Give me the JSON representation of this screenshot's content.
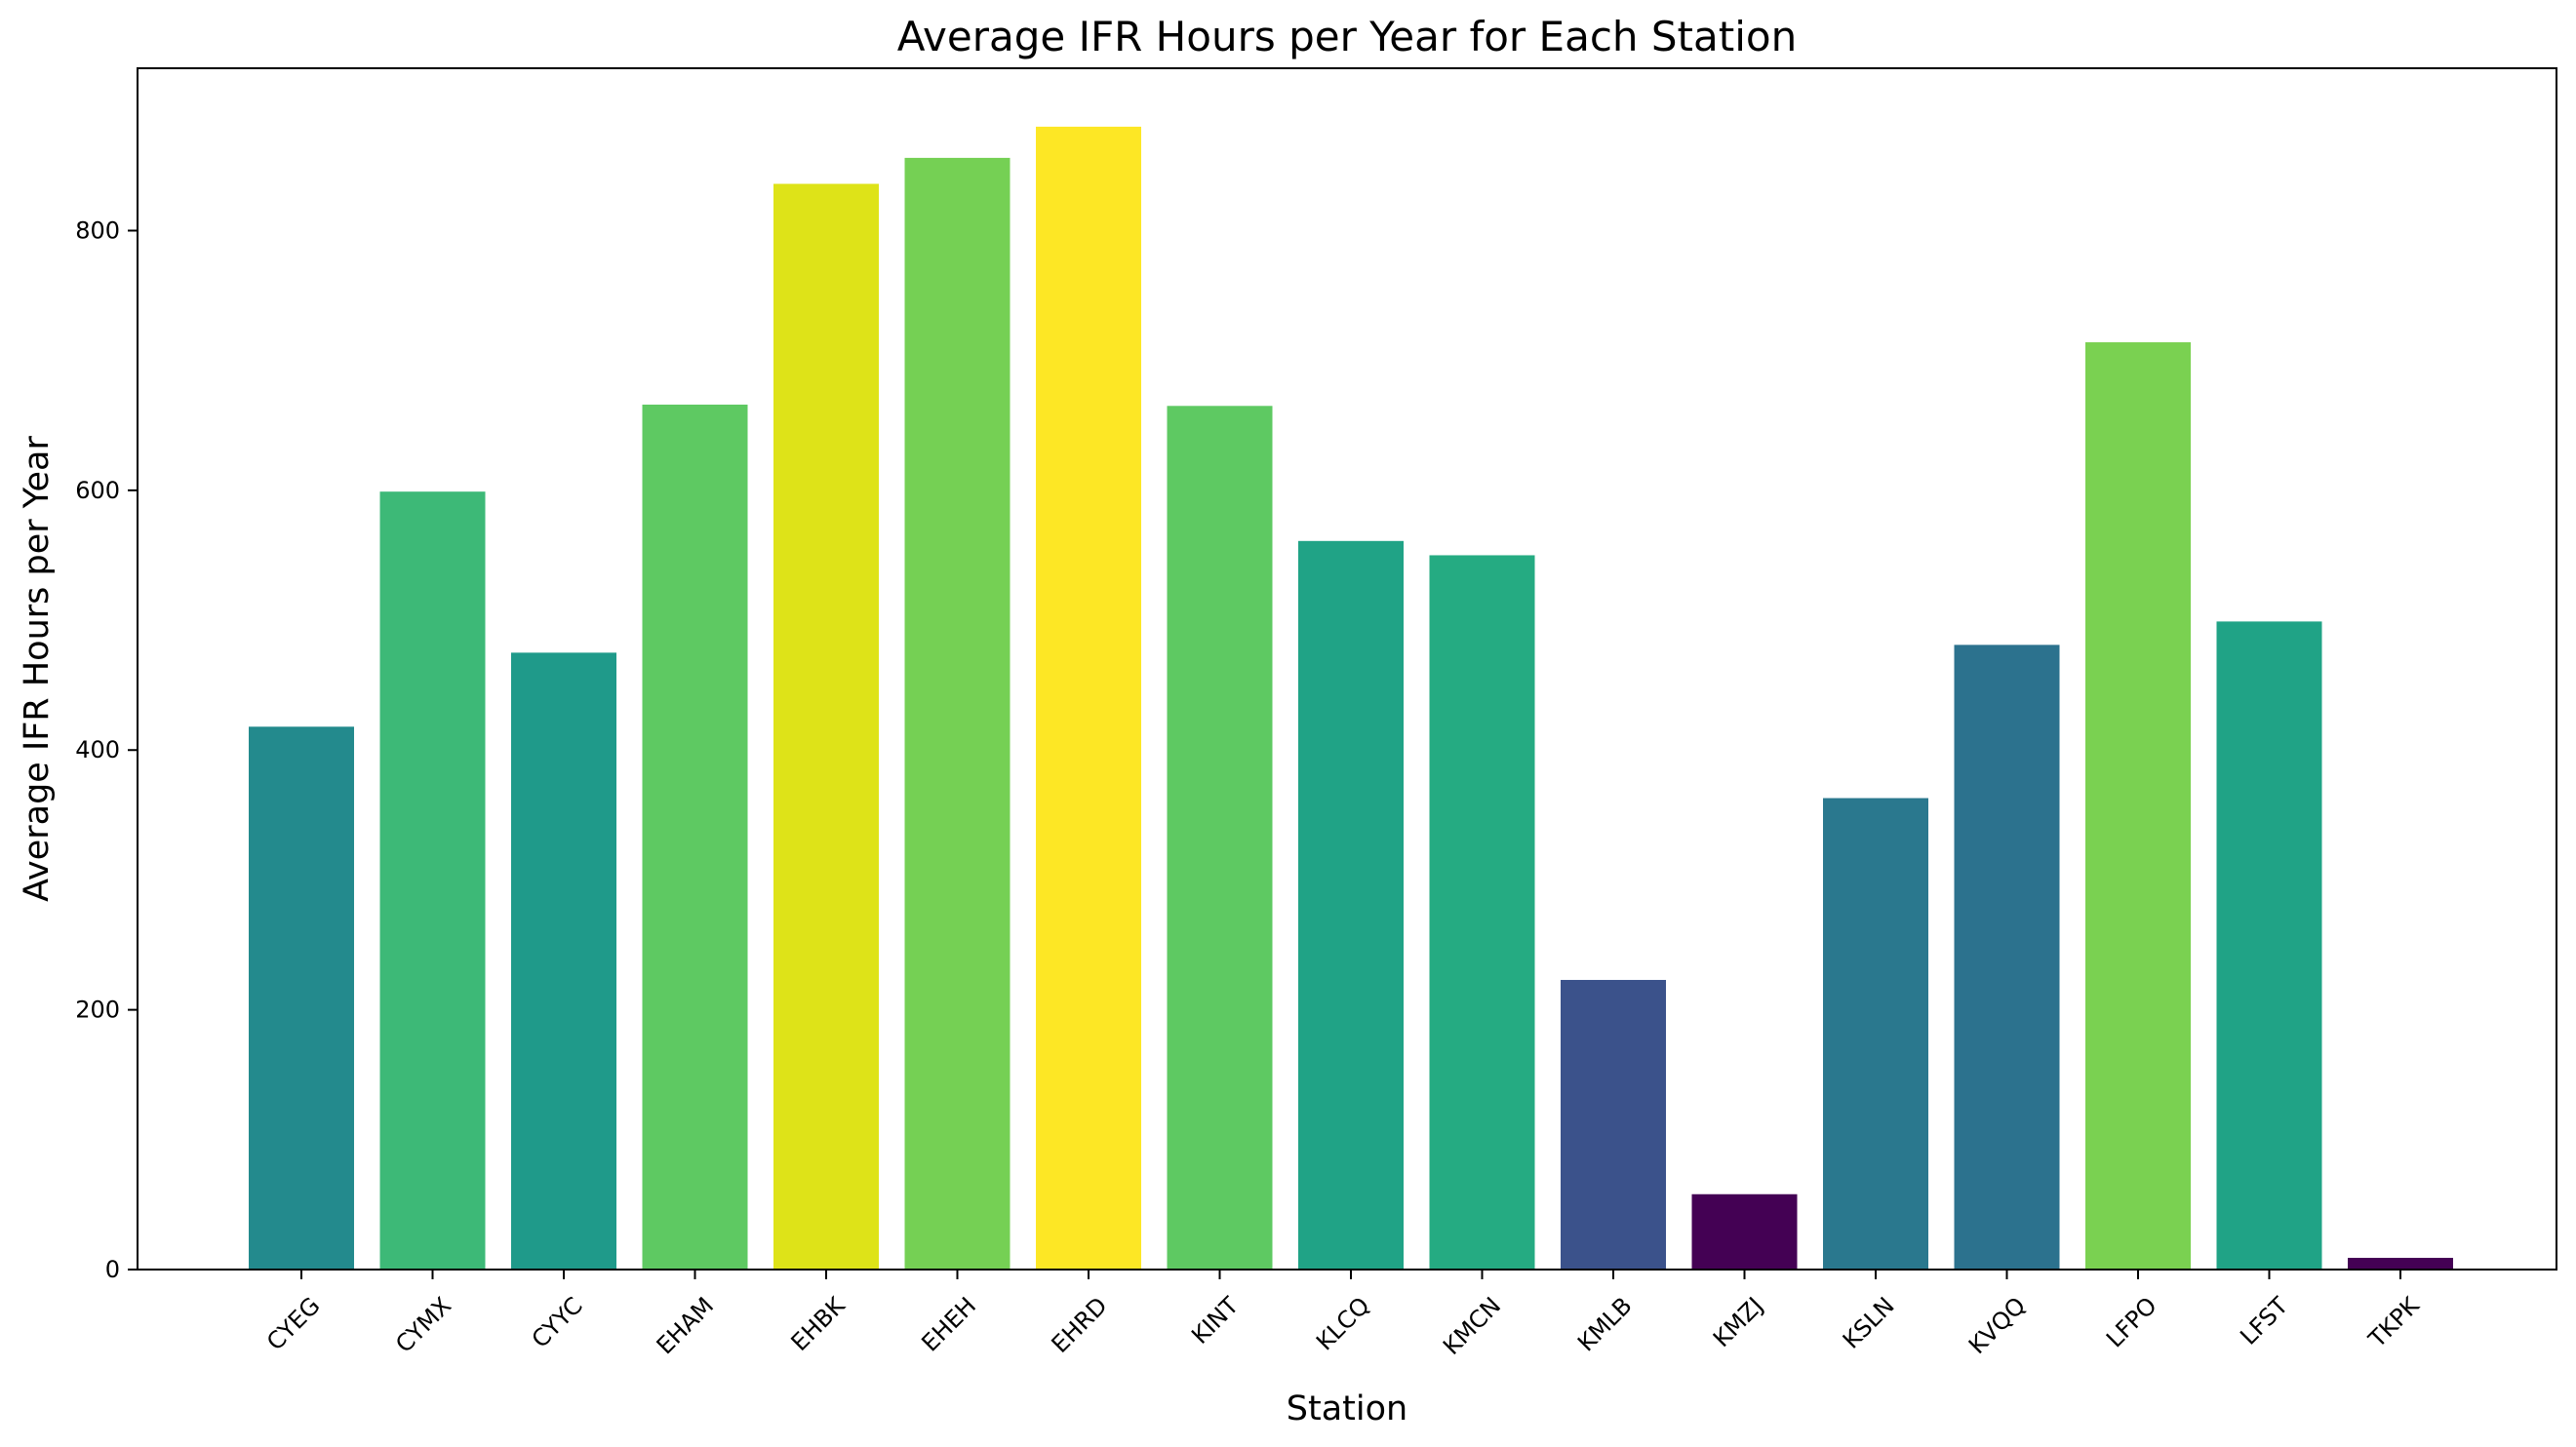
{
  "chart_data": {
    "type": "bar",
    "title": "Average IFR Hours per Year for Each Station",
    "xlabel": "Station",
    "ylabel": "Average IFR Hours per Year",
    "ylim": [
      0,
      925
    ],
    "yticks": [
      0,
      200,
      400,
      600,
      800
    ],
    "grid": false,
    "legend": "none",
    "categories": [
      "CYEG",
      "CYMX",
      "CYYC",
      "EHAM",
      "EHBK",
      "EHEH",
      "EHRD",
      "KINT",
      "KLCQ",
      "KMCN",
      "KMLB",
      "KMZJ",
      "KSLN",
      "KVQQ",
      "LFPO",
      "LFST",
      "TKPK"
    ],
    "values": [
      418,
      599,
      475,
      666,
      836,
      856,
      880,
      665,
      561,
      550,
      223,
      58,
      363,
      481,
      714,
      499,
      9
    ],
    "colors": [
      "#238a8d",
      "#3db977",
      "#1f9a8a",
      "#5ec962",
      "#dee318",
      "#75d054",
      "#fde725",
      "#5ec962",
      "#20a386",
      "#25ab82",
      "#3b528b",
      "#440154",
      "#2a788e",
      "#2c728e",
      "#7ad151",
      "#20a386",
      "#440154"
    ]
  }
}
